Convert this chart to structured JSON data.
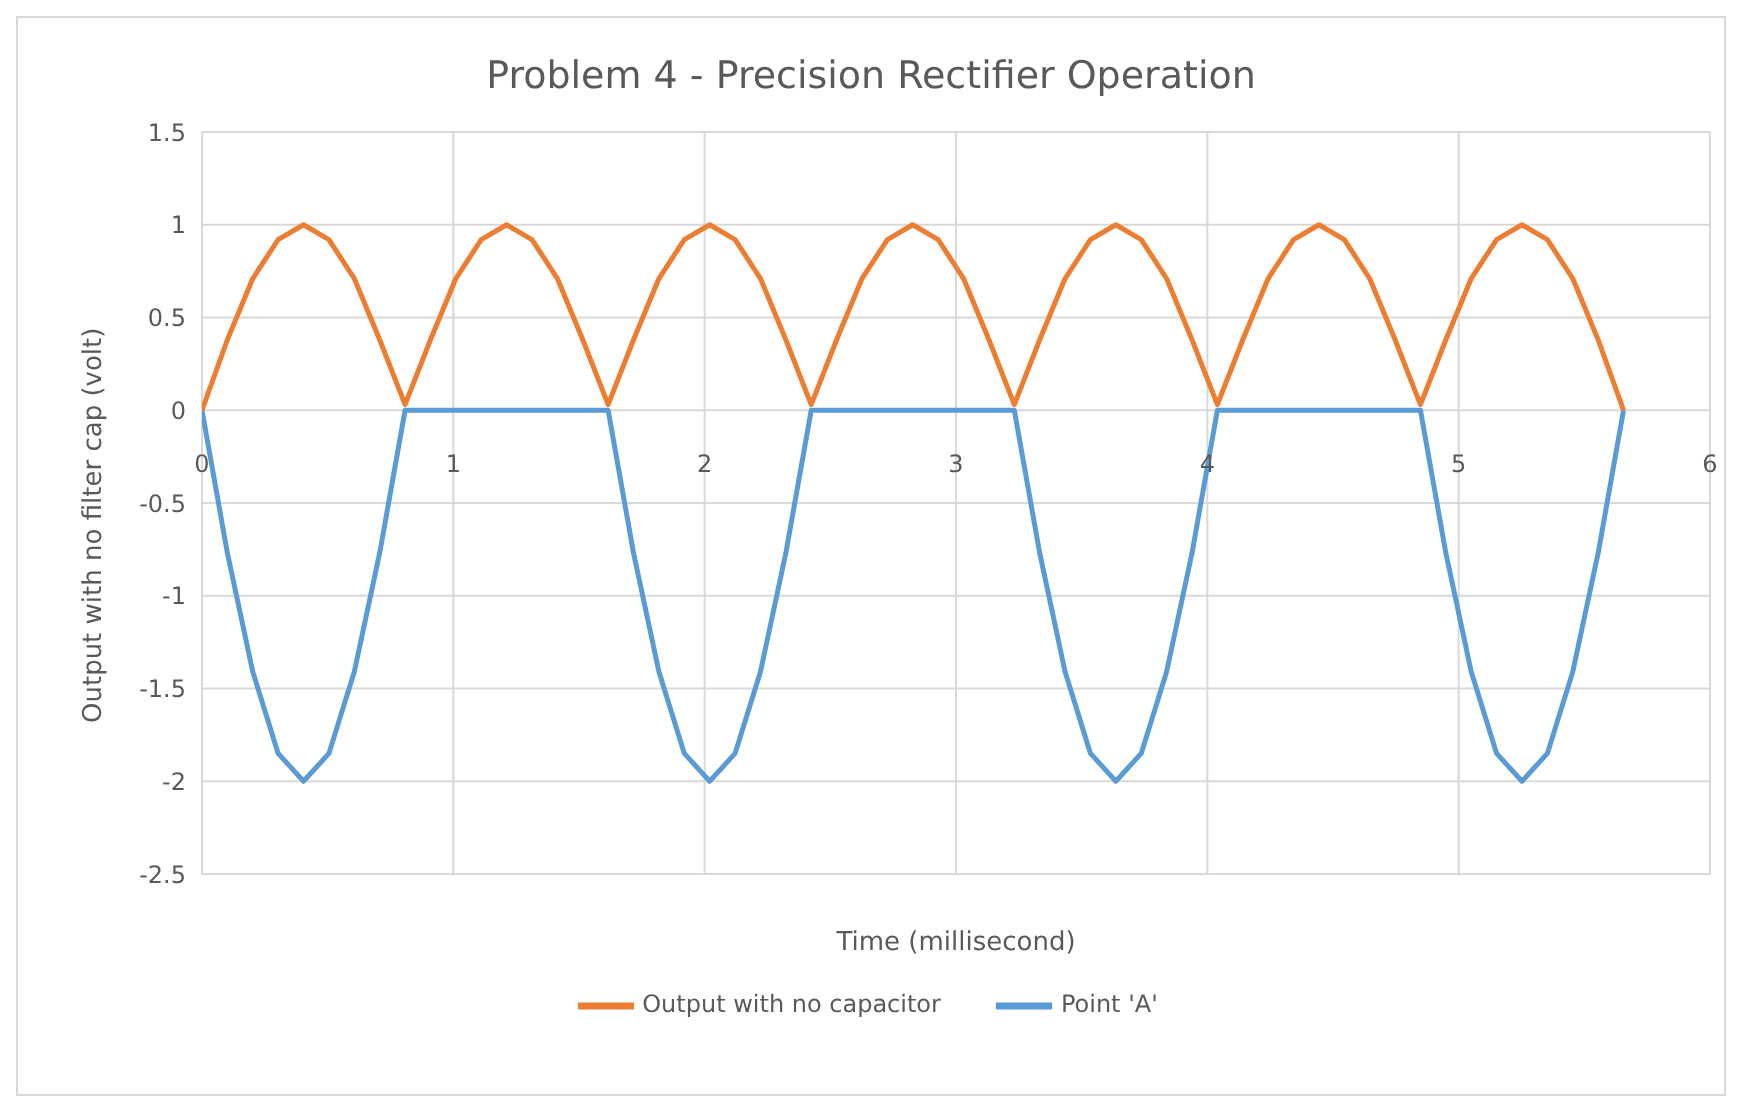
{
  "chart_data": {
    "type": "line",
    "title": "Problem 4 - Precision Rectifier Operation",
    "xlabel": "Time (millisecond)",
    "ylabel": "Output with no filter cap (volt)",
    "x": [
      0,
      0.101,
      0.202,
      0.303,
      0.404,
      0.505,
      0.606,
      0.707,
      0.808,
      0.909,
      1.01,
      1.111,
      1.212,
      1.313,
      1.414,
      1.515,
      1.616,
      1.717,
      1.818,
      1.919,
      2.02,
      2.121,
      2.222,
      2.323,
      2.424,
      2.525,
      2.626,
      2.727,
      2.828,
      2.929,
      3.03,
      3.131,
      3.232,
      3.333,
      3.434,
      3.535,
      3.636,
      3.737,
      3.838,
      3.939,
      4.04,
      4.141,
      4.242,
      4.343,
      4.444,
      4.545,
      4.646,
      4.747,
      4.848,
      4.949,
      5.05,
      5.151,
      5.252,
      5.353,
      5.454,
      5.555,
      5.656
    ],
    "series": [
      {
        "name": "Point 'A'",
        "color": "#5b9bd5",
        "values": [
          0,
          -0.77,
          -1.41,
          -1.85,
          -2,
          -1.85,
          -1.41,
          -0.77,
          0,
          0,
          0,
          0,
          0,
          0,
          0,
          0,
          0,
          -0.77,
          -1.41,
          -1.85,
          -2,
          -1.85,
          -1.41,
          -0.77,
          0,
          0,
          0,
          0,
          0,
          0,
          0,
          0,
          0,
          -0.77,
          -1.41,
          -1.85,
          -2,
          -1.85,
          -1.41,
          -0.77,
          0,
          0,
          0,
          0,
          0,
          0,
          0,
          0,
          0,
          -0.77,
          -1.41,
          -1.85,
          -2,
          -1.85,
          -1.41,
          -0.77,
          0
        ]
      },
      {
        "name": "Output with no capacitor",
        "color": "#ed7d31",
        "values": [
          0,
          0.38,
          0.71,
          0.92,
          1,
          0.92,
          0.71,
          0.38,
          0.03,
          0.38,
          0.71,
          0.92,
          1,
          0.92,
          0.71,
          0.38,
          0.03,
          0.38,
          0.71,
          0.92,
          1,
          0.92,
          0.71,
          0.38,
          0.03,
          0.38,
          0.71,
          0.92,
          1,
          0.92,
          0.71,
          0.38,
          0.03,
          0.38,
          0.71,
          0.92,
          1,
          0.92,
          0.71,
          0.38,
          0.03,
          0.38,
          0.71,
          0.92,
          1,
          0.92,
          0.71,
          0.38,
          0.03,
          0.38,
          0.71,
          0.92,
          1,
          0.92,
          0.71,
          0.38,
          0
        ]
      }
    ],
    "xlim": [
      0,
      6
    ],
    "xticks": [
      0,
      1,
      2,
      3,
      4,
      5,
      6
    ],
    "ylim": [
      -2.5,
      1.5
    ],
    "yticks": [
      -2.5,
      -2,
      -1.5,
      -1,
      -0.5,
      0,
      0.5,
      1,
      1.5
    ],
    "grid": true,
    "legend": "bottom",
    "line_style": "solid"
  }
}
